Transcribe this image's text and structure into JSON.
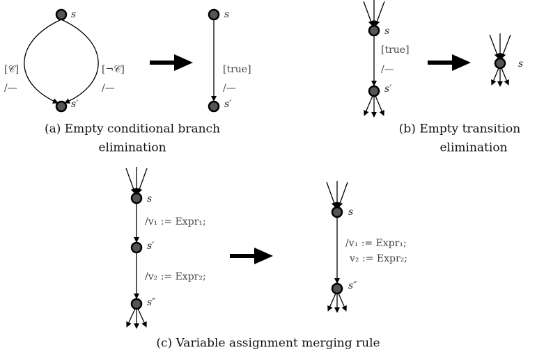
{
  "a": {
    "before": {
      "nodes": [
        "s",
        "s′"
      ],
      "left_label": [
        "[𝒞]",
        "/—"
      ],
      "right_label": [
        "[¬𝒞]",
        "/—"
      ]
    },
    "after": {
      "nodes": [
        "s",
        "s′"
      ],
      "label": [
        "[true]",
        "/—"
      ]
    },
    "caption": [
      "(a) Empty conditional branch",
      "elimination"
    ]
  },
  "b": {
    "before": {
      "nodes": [
        "s",
        "s′"
      ],
      "label": [
        "[true]",
        "/—"
      ]
    },
    "after": {
      "nodes": [
        "s"
      ]
    },
    "caption": [
      "(b) Empty transition",
      "elimination"
    ]
  },
  "c": {
    "before": {
      "nodes": [
        "s",
        "s′",
        "s″"
      ],
      "labels": [
        "/v₁ := Expr₁;",
        "/v₂ := Expr₂;"
      ]
    },
    "after": {
      "nodes": [
        "s",
        "s″"
      ],
      "label": [
        "/v₁ := Expr₁;",
        "v₂ := Expr₂;"
      ]
    },
    "caption": "(c) Variable assignment merging rule"
  }
}
